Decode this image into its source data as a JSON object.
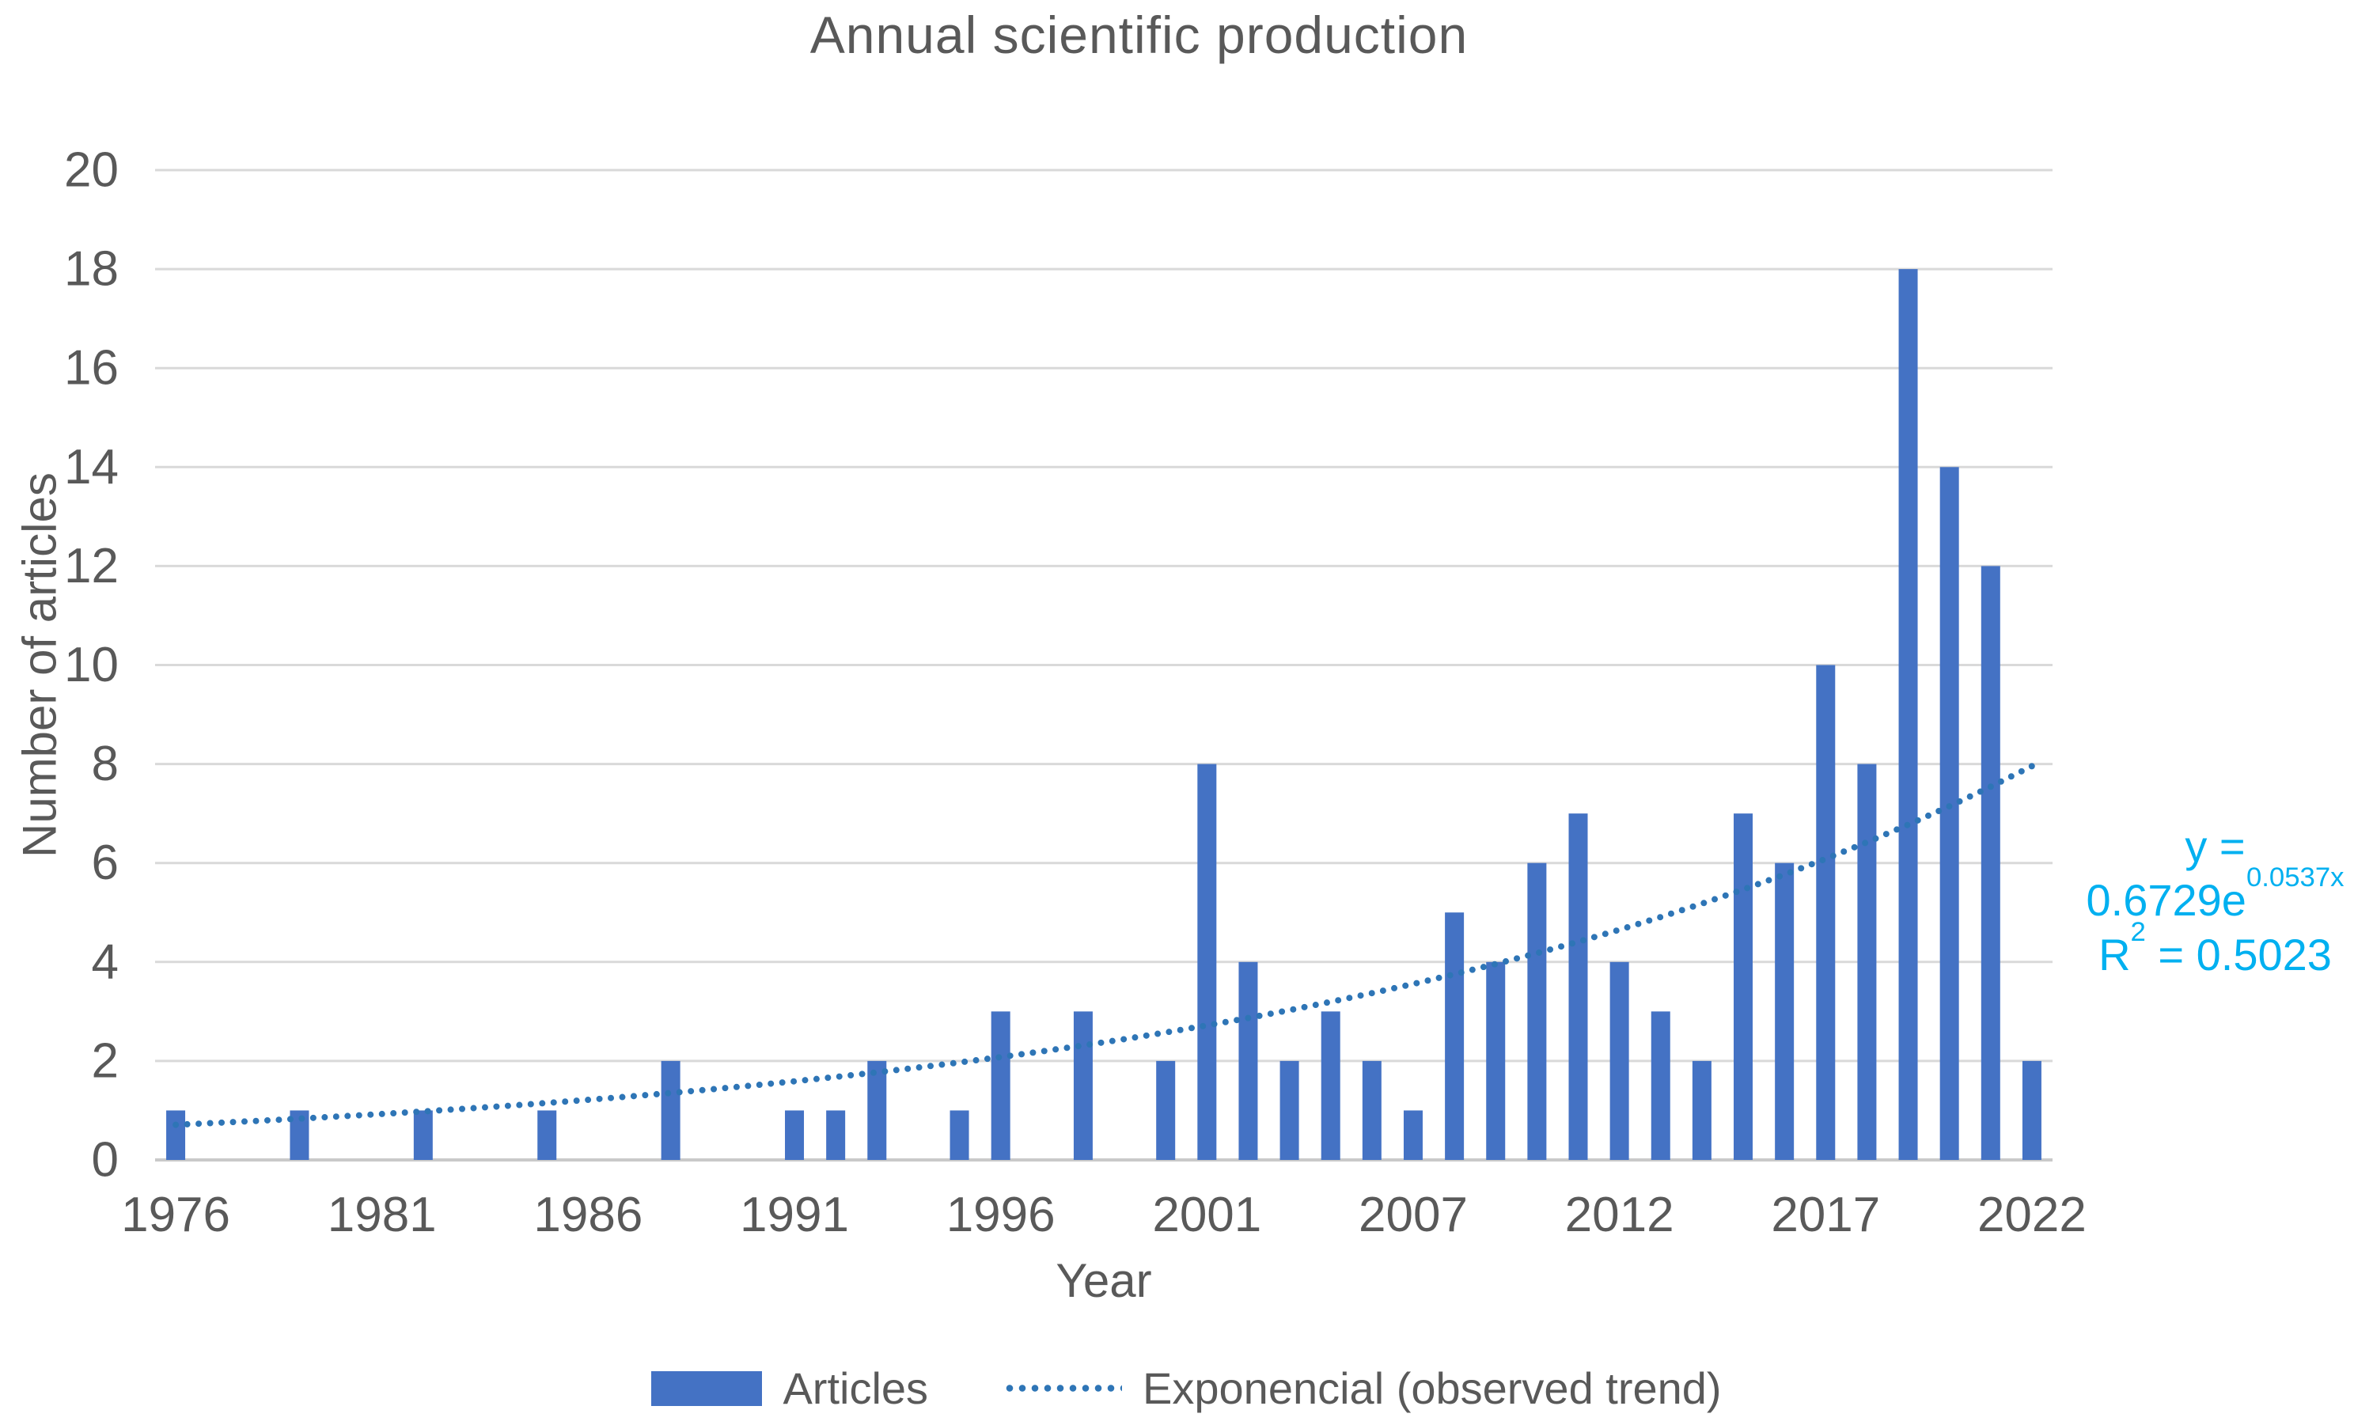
{
  "chart_data": {
    "type": "bar",
    "title": "Annual scientific production",
    "xlabel": "Year",
    "ylabel": "Number of articles",
    "categories": [
      1976,
      1977,
      1978,
      1979,
      1980,
      1981,
      1982,
      1983,
      1984,
      1985,
      1986,
      1987,
      1988,
      1989,
      1990,
      1991,
      1992,
      1993,
      1994,
      1995,
      1996,
      1997,
      1998,
      1999,
      2000,
      2001,
      2002,
      2003,
      2004,
      2005,
      2007,
      2008,
      2009,
      2010,
      2011,
      2012,
      2013,
      2014,
      2015,
      2016,
      2017,
      2018,
      2019,
      2020,
      2021,
      2022
    ],
    "values": [
      1,
      0,
      0,
      1,
      0,
      0,
      1,
      0,
      0,
      1,
      0,
      0,
      2,
      0,
      0,
      1,
      1,
      2,
      0,
      1,
      3,
      0,
      3,
      0,
      2,
      8,
      4,
      2,
      3,
      2,
      1,
      5,
      4,
      6,
      7,
      4,
      3,
      2,
      7,
      6,
      10,
      8,
      18,
      14,
      12,
      2
    ],
    "ylim": [
      0,
      20
    ],
    "y_ticks": [
      0,
      2,
      4,
      6,
      8,
      10,
      12,
      14,
      16,
      18,
      20
    ],
    "x_tick_indices": [
      0,
      5,
      10,
      15,
      20,
      25,
      30,
      35,
      40,
      45
    ],
    "x_tick_labels": [
      "1976",
      "1981",
      "1986",
      "1991",
      "1996",
      "2001",
      "2007",
      "2012",
      "2017",
      "2022"
    ],
    "grid": true,
    "legend_position": "bottom",
    "legend": [
      "Articles",
      "Exponencial (observed trend)"
    ],
    "bar_color": "#4472C4",
    "gridline_color": "#D9D9D9",
    "axis_line_color": "#C9C9C9",
    "text_color": "#595959",
    "annotation_color": "#00B0F0",
    "trend": {
      "type": "exponential",
      "a": 0.6729,
      "b": 0.0537,
      "color": "#2E75B6",
      "equation": "y = 0.6729e^0.0537x",
      "equation_base": "y = 0.6729e",
      "equation_exponent": "0.0537x",
      "r_squared": "R² = 0.5023",
      "r2_base": "R",
      "r2_sup": "2",
      "r2_rest": " = 0.5023"
    }
  }
}
